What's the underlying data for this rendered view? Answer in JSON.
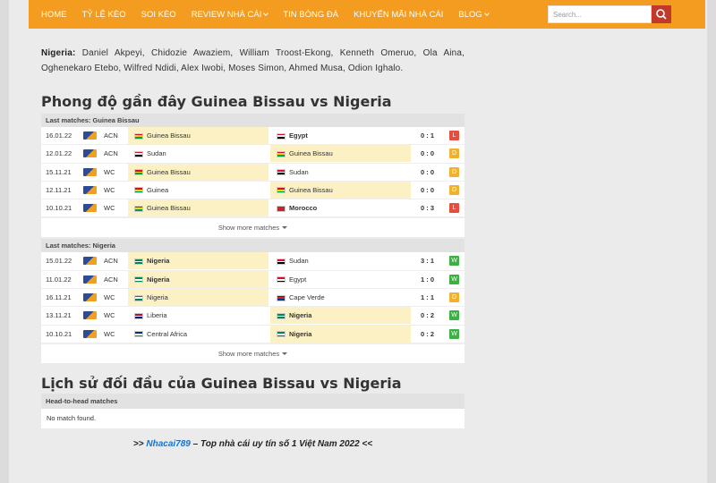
{
  "nav": {
    "items": [
      "HOME",
      "TỶ LỆ KÈO",
      "SOI KÈO",
      "REVIEW NHÀ CÁI",
      "TIN BÓNG ĐÁ",
      "KHUYẾN MÃI NHÀ CÁI",
      "BLOG"
    ],
    "dropdown": [
      false,
      false,
      false,
      true,
      false,
      false,
      true
    ],
    "search_placeholder": "Search..."
  },
  "intro": {
    "label": "Nigeria:",
    "text": "Daniel Akpeyi, Chidozie Awaziem, William Troost-Ekong, Kenneth Omeruo, Ola Aina, Oghenekaro Etebo, Wilfred Ndidi, Alex Iwobi, Moses Simon, Ahmed Musa, Odion Ighalo."
  },
  "form": {
    "title": "Phong độ gần đây Guinea Bissau vs Nigeria",
    "tables": [
      {
        "header": "Last matches: Guinea Bissau",
        "show_more": "Show more matches",
        "rows": [
          {
            "date": "16.01.22",
            "comp": "ACN",
            "home": "Guinea Bissau",
            "away": "Egypt",
            "score": "0 : 1",
            "result": "L",
            "focus": "home",
            "home_flag": [
              "#d21034",
              "#fcd116",
              "#009e49"
            ],
            "away_flag": [
              "#ce1126",
              "#ffffff",
              "#000000"
            ]
          },
          {
            "date": "12.01.22",
            "comp": "ACN",
            "home": "Sudan",
            "away": "Guinea Bissau",
            "score": "0 : 0",
            "result": "D",
            "focus": "away",
            "home_flag": [
              "#d21034",
              "#ffffff",
              "#000000"
            ],
            "away_flag": [
              "#d21034",
              "#fcd116",
              "#009e49"
            ]
          },
          {
            "date": "15.11.21",
            "comp": "WC",
            "home": "Guinea Bissau",
            "away": "Sudan",
            "score": "0 : 0",
            "result": "D",
            "focus": "home",
            "home_flag": [
              "#d21034",
              "#fcd116",
              "#009e49"
            ],
            "away_flag": [
              "#d21034",
              "#ffffff",
              "#000000"
            ]
          },
          {
            "date": "12.11.21",
            "comp": "WC",
            "home": "Guinea",
            "away": "Guinea Bissau",
            "score": "0 : 0",
            "result": "D",
            "focus": "away",
            "home_flag": [
              "#ce1126",
              "#fcd116",
              "#009460"
            ],
            "away_flag": [
              "#d21034",
              "#fcd116",
              "#009e49"
            ]
          },
          {
            "date": "10.10.21",
            "comp": "WC",
            "home": "Guinea Bissau",
            "away": "Morocco",
            "score": "0 : 3",
            "result": "L",
            "focus": "home",
            "home_flag": [
              "#d21034",
              "#fcd116",
              "#009e49"
            ],
            "away_flag": [
              "#c1272d",
              "#c1272d",
              "#c1272d"
            ]
          }
        ]
      },
      {
        "header": "Last matches: Nigeria",
        "show_more": "Show more matches",
        "rows": [
          {
            "date": "15.01.22",
            "comp": "ACN",
            "home": "Nigeria",
            "away": "Sudan",
            "score": "3 : 1",
            "result": "W",
            "focus": "home",
            "home_flag": [
              "#008751",
              "#ffffff",
              "#008751"
            ],
            "away_flag": [
              "#d21034",
              "#ffffff",
              "#000000"
            ]
          },
          {
            "date": "11.01.22",
            "comp": "ACN",
            "home": "Nigeria",
            "away": "Egypt",
            "score": "1 : 0",
            "result": "W",
            "focus": "home",
            "home_flag": [
              "#008751",
              "#ffffff",
              "#008751"
            ],
            "away_flag": [
              "#ce1126",
              "#ffffff",
              "#000000"
            ]
          },
          {
            "date": "16.11.21",
            "comp": "WC",
            "home": "Nigeria",
            "away": "Cape Verde",
            "score": "1 : 1",
            "result": "D",
            "focus": "home",
            "home_flag": [
              "#008751",
              "#ffffff",
              "#008751"
            ],
            "away_flag": [
              "#003893",
              "#cf2027",
              "#003893"
            ]
          },
          {
            "date": "13.11.21",
            "comp": "WC",
            "home": "Liberia",
            "away": "Nigeria",
            "score": "0 : 2",
            "result": "W",
            "focus": "away",
            "home_flag": [
              "#bf0a30",
              "#ffffff",
              "#002868"
            ],
            "away_flag": [
              "#008751",
              "#ffffff",
              "#008751"
            ]
          },
          {
            "date": "10.10.21",
            "comp": "WC",
            "home": "Central Africa",
            "away": "Nigeria",
            "score": "0 : 2",
            "result": "W",
            "focus": "away",
            "home_flag": [
              "#003082",
              "#ffffff",
              "#289728"
            ],
            "away_flag": [
              "#008751",
              "#ffffff",
              "#008751"
            ]
          }
        ]
      }
    ]
  },
  "h2h": {
    "title": "Lịch sử đối đầu của Guinea Bissau vs Nigeria",
    "header": "Head-to-head matches",
    "empty": "No match found."
  },
  "footer": {
    "prefix": ">>",
    "link": "Nhacai789",
    "suffix": "– Top nhà cái uy tín số 1 Việt Nam 2022 <<"
  }
}
